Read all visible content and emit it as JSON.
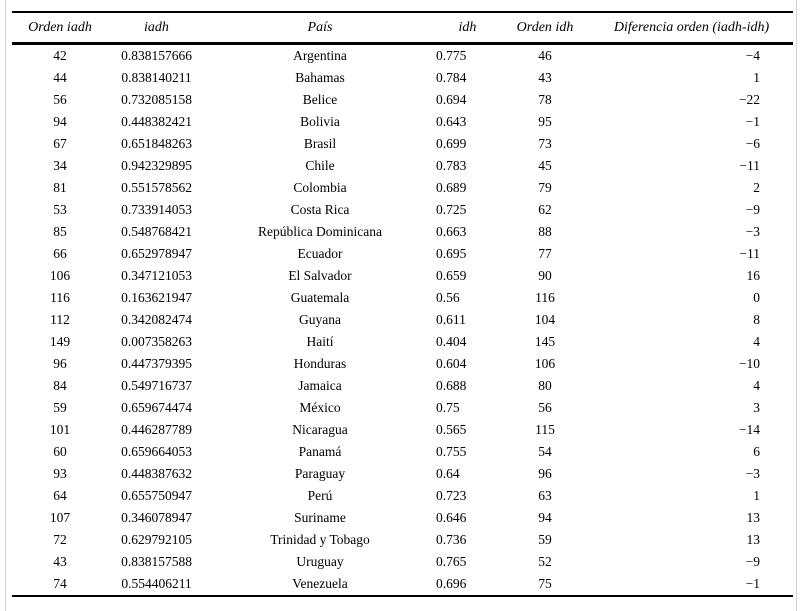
{
  "page": {
    "background_color": "#ffffff",
    "frame_line_color": "#d2d2d2",
    "rule_color": "#000000",
    "text_color": "#000000"
  },
  "table": {
    "columns": [
      {
        "id": "orden_iadh",
        "label": "Orden iadh"
      },
      {
        "id": "iadh",
        "label": "iadh"
      },
      {
        "id": "pais",
        "label": "País"
      },
      {
        "id": "idh",
        "label": "idh"
      },
      {
        "id": "orden_idh",
        "label": "Orden idh"
      },
      {
        "id": "diferencia_orden",
        "label": "Diferencia orden (iadh-idh)"
      }
    ],
    "rows": [
      [
        "42",
        "0.838157666",
        "Argentina",
        "0.775",
        "46",
        "−4"
      ],
      [
        "44",
        "0.838140211",
        "Bahamas",
        "0.784",
        "43",
        "1"
      ],
      [
        "56",
        "0.732085158",
        "Belice",
        "0.694",
        "78",
        "−22"
      ],
      [
        "94",
        "0.448382421",
        "Bolivia",
        "0.643",
        "95",
        "−1"
      ],
      [
        "67",
        "0.651848263",
        "Brasil",
        "0.699",
        "73",
        "−6"
      ],
      [
        "34",
        "0.942329895",
        "Chile",
        "0.783",
        "45",
        "−11"
      ],
      [
        "81",
        "0.551578562",
        "Colombia",
        "0.689",
        "79",
        "2"
      ],
      [
        "53",
        "0.733914053",
        "Costa Rica",
        "0.725",
        "62",
        "−9"
      ],
      [
        "85",
        "0.548768421",
        "República Dominicana",
        "0.663",
        "88",
        "−3"
      ],
      [
        "66",
        "0.652978947",
        "Ecuador",
        "0.695",
        "77",
        "−11"
      ],
      [
        "106",
        "0.347121053",
        "El Salvador",
        "0.659",
        "90",
        "16"
      ],
      [
        "116",
        "0.163621947",
        "Guatemala",
        "0.56",
        "116",
        "0"
      ],
      [
        "112",
        "0.342082474",
        "Guyana",
        "0.611",
        "104",
        "8"
      ],
      [
        "149",
        "0.007358263",
        "Haití",
        "0.404",
        "145",
        "4"
      ],
      [
        "96",
        "0.447379395",
        "Honduras",
        "0.604",
        "106",
        "−10"
      ],
      [
        "84",
        "0.549716737",
        "Jamaica",
        "0.688",
        "80",
        "4"
      ],
      [
        "59",
        "0.659674474",
        "México",
        "0.75",
        "56",
        "3"
      ],
      [
        "101",
        "0.446287789",
        "Nicaragua",
        "0.565",
        "115",
        "−14"
      ],
      [
        "60",
        "0.659664053",
        "Panamá",
        "0.755",
        "54",
        "6"
      ],
      [
        "93",
        "0.448387632",
        "Paraguay",
        "0.64",
        "96",
        "−3"
      ],
      [
        "64",
        "0.655750947",
        "Perú",
        "0.723",
        "63",
        "1"
      ],
      [
        "107",
        "0.346078947",
        "Suriname",
        "0.646",
        "94",
        "13"
      ],
      [
        "72",
        "0.629792105",
        "Trinidad y Tobago",
        "0.736",
        "59",
        "13"
      ],
      [
        "43",
        "0.838157588",
        "Uruguay",
        "0.765",
        "52",
        "−9"
      ],
      [
        "74",
        "0.554406211",
        "Venezuela",
        "0.696",
        "75",
        "−1"
      ]
    ]
  }
}
